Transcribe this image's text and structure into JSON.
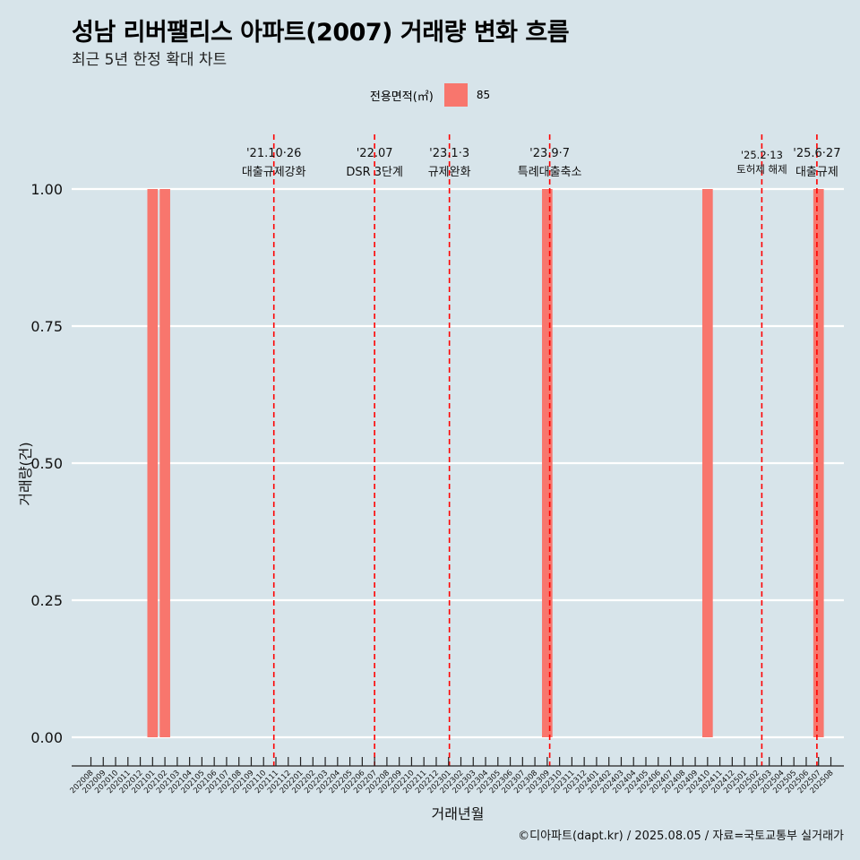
{
  "title": "성남 리버팰리스 아파트(2007) 거래량 변화 흐름",
  "subtitle": "최근 5년 한정 확대 차트",
  "legend": {
    "title": "전용면적(㎡)",
    "items": [
      {
        "label": "85",
        "color": "#f8766d"
      }
    ]
  },
  "footer": "©디아파트(dapt.kr) / 2025.08.05 / 자료=국토교통부 실거래가",
  "colors": {
    "background": "#d7e4ea",
    "bar": "#f8766d",
    "event_line": "#ff0000",
    "grid": "#ffffff"
  },
  "chart_data": {
    "type": "bar",
    "xlabel": "거래년월",
    "ylabel": "거래량(건)",
    "ylim": [
      0,
      1
    ],
    "yticks": [
      "0.00",
      "0.25",
      "0.50",
      "0.75",
      "1.00"
    ],
    "grid": true,
    "legend_position": "top",
    "categories": [
      "202008",
      "202009",
      "202010",
      "202011",
      "202012",
      "202101",
      "202102",
      "202103",
      "202104",
      "202105",
      "202106",
      "202107",
      "202108",
      "202109",
      "202110",
      "202111",
      "202112",
      "202201",
      "202202",
      "202203",
      "202204",
      "202205",
      "202206",
      "202207",
      "202208",
      "202209",
      "202210",
      "202211",
      "202212",
      "202301",
      "202302",
      "202303",
      "202304",
      "202305",
      "202306",
      "202307",
      "202308",
      "202309",
      "202310",
      "202311",
      "202312",
      "202401",
      "202402",
      "202403",
      "202404",
      "202405",
      "202406",
      "202407",
      "202408",
      "202409",
      "202410",
      "202411",
      "202412",
      "202501",
      "202502",
      "202503",
      "202504",
      "202505",
      "202506",
      "202507",
      "202508"
    ],
    "series": [
      {
        "name": "85",
        "values": [
          0,
          0,
          0,
          0,
          0,
          1,
          1,
          0,
          0,
          0,
          0,
          0,
          0,
          0,
          0,
          0,
          0,
          0,
          0,
          0,
          0,
          0,
          0,
          0,
          0,
          0,
          0,
          0,
          0,
          0,
          0,
          0,
          0,
          0,
          0,
          0,
          0,
          1,
          0,
          0,
          0,
          0,
          0,
          0,
          0,
          0,
          0,
          0,
          0,
          0,
          1,
          0,
          0,
          0,
          0,
          0,
          0,
          0,
          0,
          1,
          0
        ]
      }
    ],
    "events": [
      {
        "date": "'21.10·26",
        "label": "대출규제강화",
        "month": "202110",
        "day": 26
      },
      {
        "date": "'22.07",
        "label": "DSR 3단계",
        "month": "202207",
        "day": 1
      },
      {
        "date": "'23.1·3",
        "label": "규제완화",
        "month": "202301",
        "day": 3
      },
      {
        "date": "'23.9·7",
        "label": "특례대출축소",
        "month": "202309",
        "day": 7
      },
      {
        "date": "'25.2·13",
        "label": "토허제 해제",
        "month": "202502",
        "day": 13
      },
      {
        "date": "'25.6·27",
        "label": "대출규제",
        "month": "202506",
        "day": 27
      }
    ]
  }
}
